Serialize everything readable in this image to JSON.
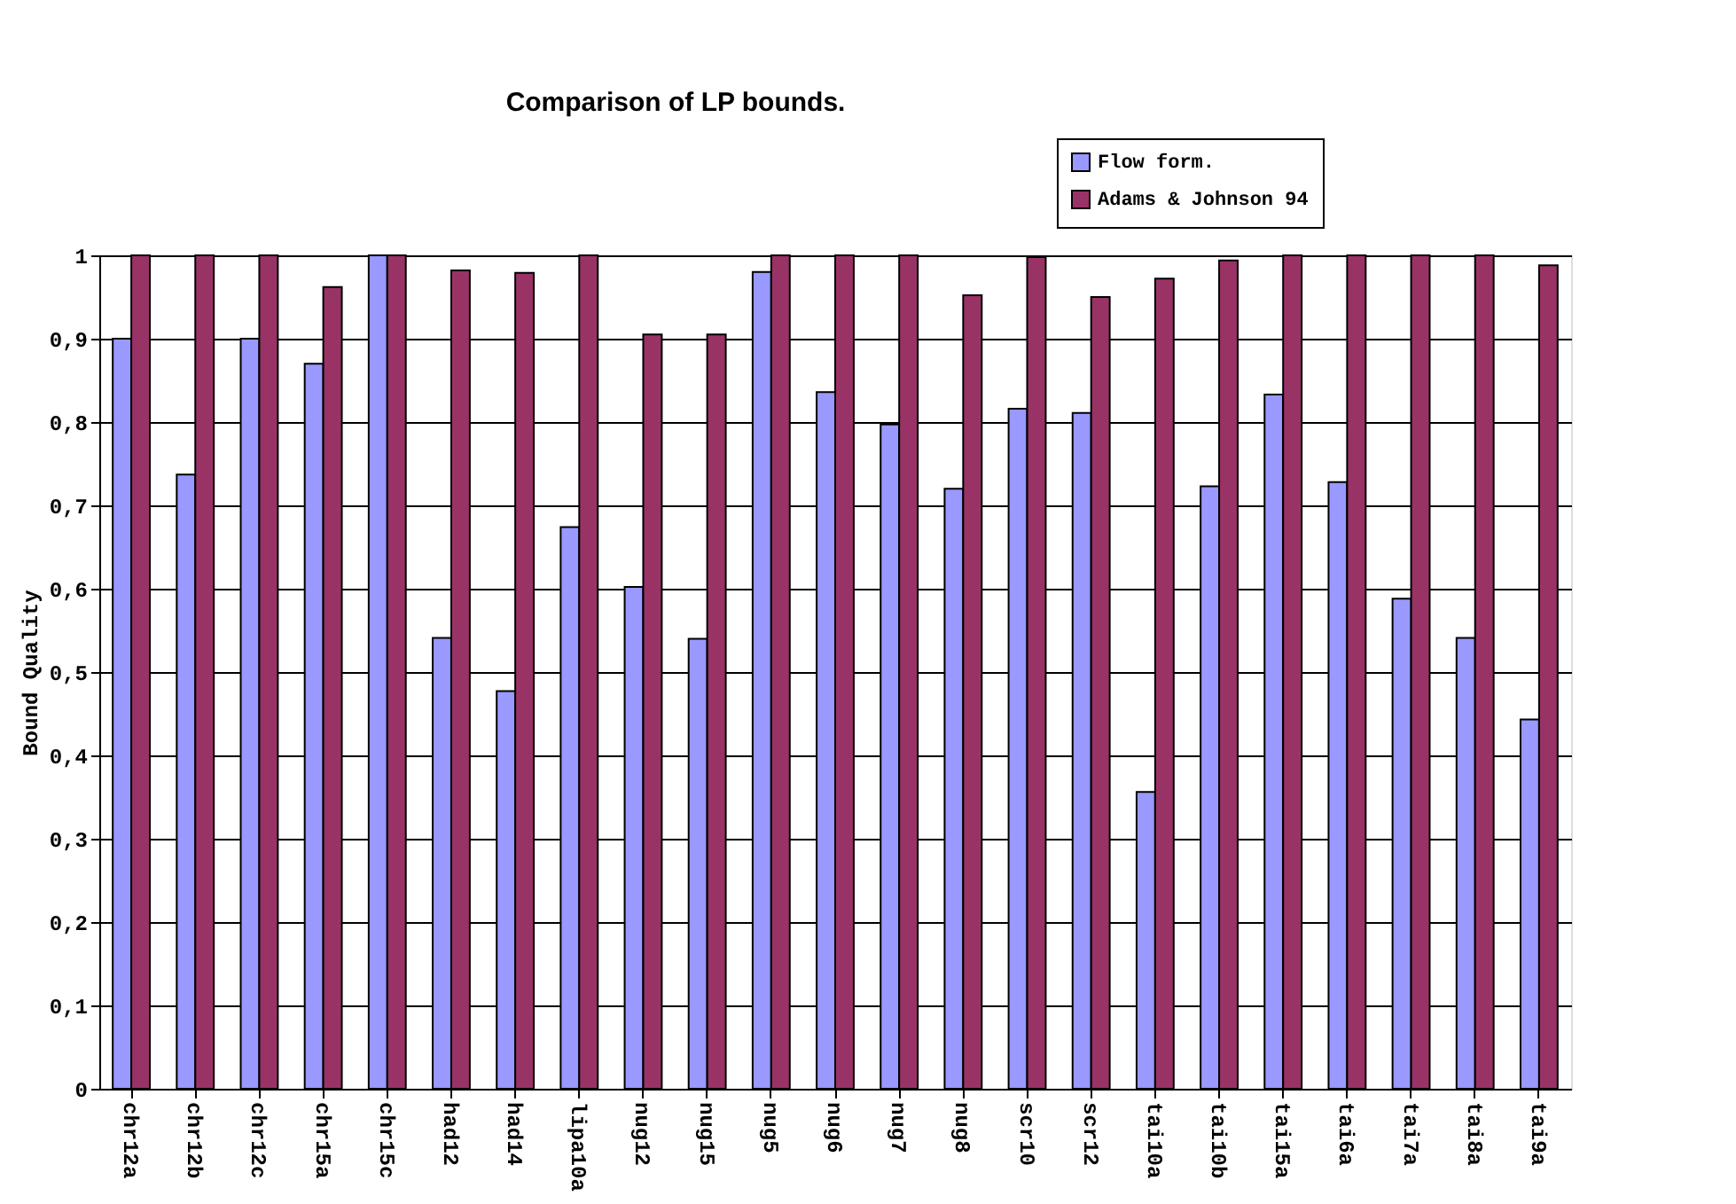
{
  "chart_data": {
    "type": "bar",
    "title": "Comparison of LP bounds.",
    "ylabel": "Bound Quality",
    "categories": [
      "chr12a",
      "chr12b",
      "chr12c",
      "chr15a",
      "chr15c",
      "had12",
      "had14",
      "lipa10a",
      "nug12",
      "nug15",
      "nug5",
      "nug6",
      "nug7",
      "nug8",
      "scr10",
      "scr12",
      "tai10a",
      "tai10b",
      "tai15a",
      "tai6a",
      "tai7a",
      "tai8a",
      "tai9a"
    ],
    "series": [
      {
        "name": "Flow form.",
        "color": "#9999ff",
        "values": [
          0.9,
          0.737,
          0.9,
          0.87,
          1.0,
          0.541,
          0.477,
          0.674,
          0.602,
          0.54,
          0.98,
          0.836,
          0.797,
          0.72,
          0.816,
          0.811,
          0.356,
          0.723,
          0.833,
          0.728,
          0.588,
          0.541,
          0.443
        ]
      },
      {
        "name": "Adams & Johnson 94",
        "color": "#993366",
        "values": [
          1,
          1,
          1,
          0.962,
          1,
          0.982,
          0.979,
          1,
          0.905,
          0.905,
          1,
          1,
          1,
          0.952,
          0.998,
          0.95,
          0.972,
          0.994,
          1,
          1,
          1,
          1,
          0.988
        ]
      }
    ],
    "ylim": [
      0,
      1
    ],
    "yticks": [
      {
        "value": 0,
        "label": "0"
      },
      {
        "value": 0.1,
        "label": "0,1"
      },
      {
        "value": 0.2,
        "label": "0,2"
      },
      {
        "value": 0.3,
        "label": "0,3"
      },
      {
        "value": 0.4,
        "label": "0,4"
      },
      {
        "value": 0.5,
        "label": "0,5"
      },
      {
        "value": 0.6,
        "label": "0,6"
      },
      {
        "value": 0.7,
        "label": "0,7"
      },
      {
        "value": 0.8,
        "label": "0,8"
      },
      {
        "value": 0.9,
        "label": "0,9"
      },
      {
        "value": 1,
        "label": "1"
      }
    ],
    "grid": "y",
    "legend": "top right"
  }
}
